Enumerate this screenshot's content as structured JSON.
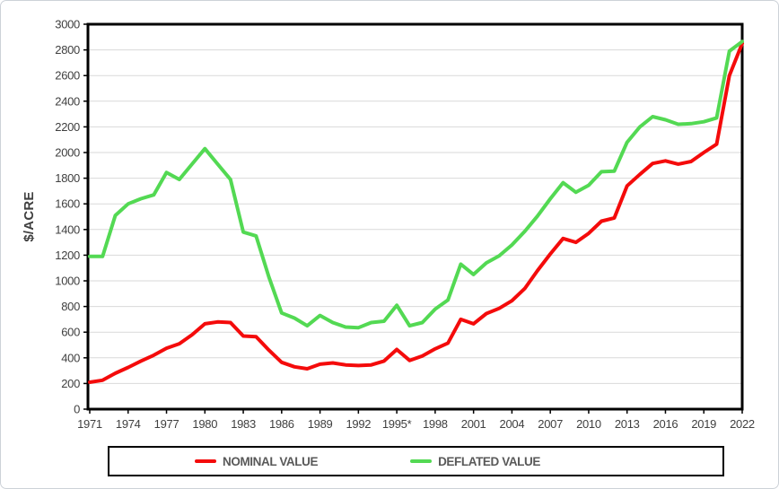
{
  "chart_data": {
    "type": "line",
    "title": "",
    "ylabel": "$/ACRE",
    "xlabel": "",
    "ylim": [
      0,
      3000
    ],
    "ytick_step": 200,
    "grid": "horizontal",
    "legend_position": "bottom",
    "x": [
      1971,
      1972,
      1973,
      1974,
      1975,
      1976,
      1977,
      1978,
      1979,
      1980,
      1981,
      1982,
      1983,
      1984,
      1985,
      1986,
      1987,
      1988,
      1989,
      1990,
      1991,
      1992,
      1993,
      1994,
      1995,
      1996,
      1997,
      1998,
      1999,
      2000,
      2001,
      2002,
      2003,
      2004,
      2005,
      2006,
      2007,
      2008,
      2009,
      2010,
      2011,
      2012,
      2013,
      2014,
      2015,
      2016,
      2017,
      2018,
      2019,
      2020,
      2021,
      2022
    ],
    "xticks": [
      {
        "year": 1971,
        "label": "1971"
      },
      {
        "year": 1974,
        "label": "1974"
      },
      {
        "year": 1977,
        "label": "1977"
      },
      {
        "year": 1980,
        "label": "1980"
      },
      {
        "year": 1983,
        "label": "1983"
      },
      {
        "year": 1986,
        "label": "1986"
      },
      {
        "year": 1989,
        "label": "1989"
      },
      {
        "year": 1992,
        "label": "1992"
      },
      {
        "year": 1995,
        "label": "1995*"
      },
      {
        "year": 1998,
        "label": "1998"
      },
      {
        "year": 2001,
        "label": "2001"
      },
      {
        "year": 2004,
        "label": "2004"
      },
      {
        "year": 2007,
        "label": "2007"
      },
      {
        "year": 2010,
        "label": "2010"
      },
      {
        "year": 2013,
        "label": "2013"
      },
      {
        "year": 2016,
        "label": "2016"
      },
      {
        "year": 2019,
        "label": "2019"
      },
      {
        "year": 2022,
        "label": "2022"
      }
    ],
    "series": [
      {
        "name": "NOMINAL VALUE",
        "color": "#f40b0b",
        "values": [
          210,
          225,
          280,
          325,
          375,
          420,
          475,
          510,
          580,
          665,
          680,
          675,
          570,
          565,
          460,
          365,
          330,
          315,
          350,
          360,
          345,
          340,
          345,
          375,
          465,
          380,
          415,
          470,
          515,
          700,
          665,
          745,
          785,
          845,
          940,
          1080,
          1210,
          1330,
          1300,
          1370,
          1465,
          1490,
          1740,
          1830,
          1915,
          1935,
          1910,
          1930,
          2000,
          2065,
          2600,
          2850
        ]
      },
      {
        "name": "DEFLATED VALUE",
        "color": "#53d953",
        "values": [
          1190,
          1190,
          1510,
          1600,
          1640,
          1670,
          1845,
          1790,
          1910,
          2030,
          1910,
          1790,
          1380,
          1350,
          1030,
          750,
          710,
          650,
          730,
          675,
          640,
          635,
          675,
          685,
          810,
          650,
          675,
          780,
          850,
          1130,
          1050,
          1140,
          1195,
          1280,
          1385,
          1505,
          1640,
          1765,
          1690,
          1745,
          1850,
          1855,
          2080,
          2200,
          2280,
          2255,
          2220,
          2225,
          2240,
          2270,
          2790,
          2865
        ]
      }
    ],
    "axis_text_color": "#404040",
    "grid_color": "#d9d9d9",
    "axis_line_color": "#000000"
  }
}
